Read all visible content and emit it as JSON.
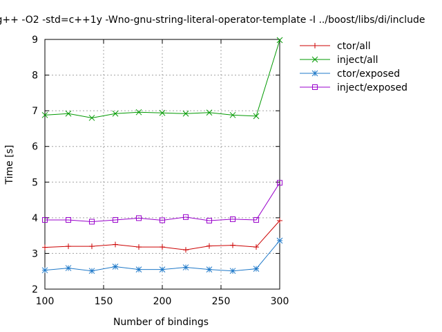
{
  "chart_data": {
    "type": "line",
    "title": "g++ -O2 -std=c++1y -Wno-gnu-string-literal-operator-template -I ../boost/libs/di/include",
    "xlabel": "Number of bindings",
    "ylabel": "Time [s]",
    "xlim": [
      100,
      300
    ],
    "ylim": [
      2,
      9
    ],
    "xticks": [
      100,
      150,
      200,
      250,
      300
    ],
    "yticks": [
      2,
      3,
      4,
      5,
      6,
      7,
      8,
      9
    ],
    "grid": true,
    "legend_position": "top-right-outside",
    "x": [
      100,
      120,
      140,
      160,
      180,
      200,
      220,
      240,
      260,
      280,
      300
    ],
    "series": [
      {
        "name": "ctor/all",
        "color": "#cc0000",
        "marker": "plus",
        "values": [
          3.17,
          3.2,
          3.2,
          3.25,
          3.18,
          3.18,
          3.1,
          3.21,
          3.23,
          3.18,
          3.92
        ]
      },
      {
        "name": "inject/all",
        "color": "#009900",
        "marker": "cross",
        "values": [
          6.88,
          6.92,
          6.8,
          6.92,
          6.96,
          6.94,
          6.92,
          6.95,
          6.88,
          6.85,
          8.98
        ]
      },
      {
        "name": "ctor/exposed",
        "color": "#1e78c8",
        "marker": "star",
        "values": [
          2.53,
          2.59,
          2.51,
          2.63,
          2.55,
          2.55,
          2.61,
          2.55,
          2.51,
          2.57,
          3.36
        ]
      },
      {
        "name": "inject/exposed",
        "color": "#9900cc",
        "marker": "square",
        "values": [
          3.94,
          3.94,
          3.89,
          3.94,
          3.99,
          3.93,
          4.02,
          3.92,
          3.96,
          3.94,
          4.98
        ]
      }
    ]
  }
}
